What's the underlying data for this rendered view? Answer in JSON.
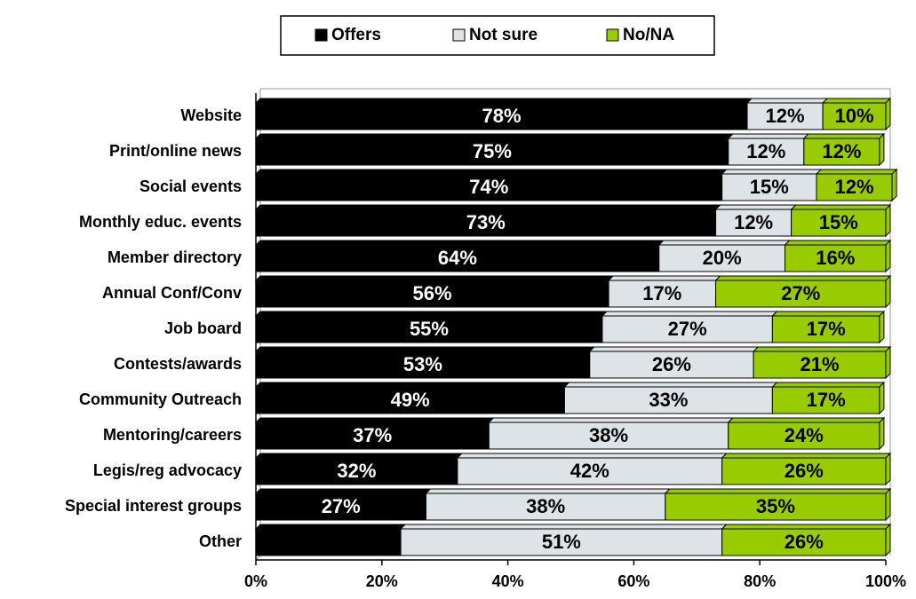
{
  "chart_data": {
    "type": "stacked_bar_horizontal",
    "categories": [
      "Website",
      "Print/online news",
      "Social events",
      "Monthly educ. events",
      "Member directory",
      "Annual Conf/Conv",
      "Job board",
      "Contests/awards",
      "Community Outreach",
      "Mentoring/careers",
      "Legis/reg advocacy",
      "Special interest groups",
      "Other"
    ],
    "series": [
      {
        "name": "Offers",
        "color": "#000000",
        "label_color": "#ffffff",
        "values": [
          78,
          75,
          74,
          73,
          64,
          56,
          55,
          53,
          49,
          37,
          32,
          27,
          23
        ],
        "value_labels": [
          "78%",
          "75%",
          "74%",
          "73%",
          "64%",
          "56%",
          "55%",
          "53%",
          "49%",
          "37%",
          "32%",
          "27%",
          null
        ]
      },
      {
        "name": "Not sure",
        "color": "#dde3e6",
        "label_color": "#000000",
        "values": [
          12,
          12,
          15,
          12,
          20,
          17,
          27,
          26,
          33,
          38,
          42,
          38,
          51
        ],
        "value_labels": [
          "12%",
          "12%",
          "15%",
          "12%",
          "20%",
          "17%",
          "27%",
          "26%",
          "33%",
          "38%",
          "42%",
          "38%",
          "51%"
        ]
      },
      {
        "name": "No/NA",
        "color": "#99cc00",
        "label_color": "#000000",
        "values": [
          10,
          12,
          12,
          15,
          16,
          27,
          17,
          21,
          17,
          24,
          26,
          35,
          26
        ],
        "value_labels": [
          "10%",
          "12%",
          "12%",
          "15%",
          "16%",
          "27%",
          "17%",
          "21%",
          "17%",
          "24%",
          "26%",
          "35%",
          "26%"
        ]
      }
    ],
    "xlim": [
      0,
      100
    ],
    "xticks": [
      {
        "value": 0,
        "label": "0%"
      },
      {
        "value": 20,
        "label": "20%"
      },
      {
        "value": 40,
        "label": "40%"
      },
      {
        "value": 60,
        "label": "60%"
      },
      {
        "value": 80,
        "label": "80%"
      },
      {
        "value": 100,
        "label": "100%"
      }
    ],
    "legend": "top"
  }
}
